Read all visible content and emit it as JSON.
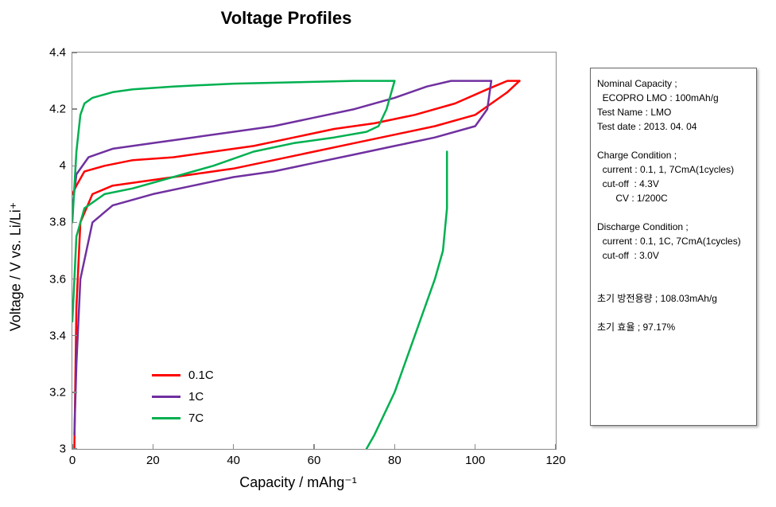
{
  "title": "Voltage Profiles",
  "axes": {
    "xlabel": "Capacity / mAhg⁻¹",
    "ylabel": "Voltage / V vs. Li/Li⁺",
    "xlim": [
      0,
      120
    ],
    "ylim": [
      3.0,
      4.4
    ],
    "xticks": [
      0,
      20,
      40,
      60,
      80,
      100,
      120
    ],
    "yticks": [
      3.0,
      3.2,
      3.4,
      3.6,
      3.8,
      4.0,
      4.2,
      4.4
    ],
    "ytick_labels": [
      "3",
      "3.2",
      "3.4",
      "3.6",
      "3.8",
      "4",
      "4.2",
      "4.4"
    ],
    "border_color": "#888888",
    "background_color": "#ffffff",
    "tick_fontsize": 15,
    "label_fontsize": 18
  },
  "legend": {
    "position": "lower-left",
    "fontsize": 15,
    "items": [
      {
        "label": "0.1C",
        "color": "#ff0000"
      },
      {
        "label": "1C",
        "color": "#7030a0"
      },
      {
        "label": "7C",
        "color": "#00b050"
      }
    ]
  },
  "series": [
    {
      "name": "0.1C",
      "color": "#ff0000",
      "line_width": 2.5,
      "charge": [
        [
          0,
          3.9
        ],
        [
          1,
          3.93
        ],
        [
          3,
          3.98
        ],
        [
          8,
          4.0
        ],
        [
          15,
          4.02
        ],
        [
          25,
          4.03
        ],
        [
          35,
          4.05
        ],
        [
          45,
          4.07
        ],
        [
          55,
          4.1
        ],
        [
          65,
          4.13
        ],
        [
          75,
          4.15
        ],
        [
          85,
          4.18
        ],
        [
          95,
          4.22
        ],
        [
          103,
          4.27
        ],
        [
          108,
          4.3
        ],
        [
          111,
          4.3
        ]
      ],
      "discharge": [
        [
          111,
          4.3
        ],
        [
          108,
          4.26
        ],
        [
          100,
          4.18
        ],
        [
          90,
          4.14
        ],
        [
          80,
          4.11
        ],
        [
          70,
          4.08
        ],
        [
          60,
          4.05
        ],
        [
          50,
          4.02
        ],
        [
          40,
          3.99
        ],
        [
          30,
          3.97
        ],
        [
          20,
          3.95
        ],
        [
          10,
          3.93
        ],
        [
          5,
          3.9
        ],
        [
          2,
          3.8
        ],
        [
          1,
          3.5
        ],
        [
          0.5,
          3.0
        ]
      ]
    },
    {
      "name": "1C",
      "color": "#7030a0",
      "line_width": 2.5,
      "charge": [
        [
          0,
          3.85
        ],
        [
          1,
          3.97
        ],
        [
          4,
          4.03
        ],
        [
          10,
          4.06
        ],
        [
          20,
          4.08
        ],
        [
          30,
          4.1
        ],
        [
          40,
          4.12
        ],
        [
          50,
          4.14
        ],
        [
          60,
          4.17
        ],
        [
          70,
          4.2
        ],
        [
          80,
          4.24
        ],
        [
          88,
          4.28
        ],
        [
          94,
          4.3
        ],
        [
          104,
          4.3
        ]
      ],
      "discharge": [
        [
          104,
          4.3
        ],
        [
          103,
          4.2
        ],
        [
          100,
          4.14
        ],
        [
          90,
          4.1
        ],
        [
          80,
          4.07
        ],
        [
          70,
          4.04
        ],
        [
          60,
          4.01
        ],
        [
          50,
          3.98
        ],
        [
          40,
          3.96
        ],
        [
          30,
          3.93
        ],
        [
          20,
          3.9
        ],
        [
          10,
          3.86
        ],
        [
          5,
          3.8
        ],
        [
          2,
          3.6
        ],
        [
          1,
          3.3
        ],
        [
          0.5,
          3.05
        ]
      ]
    },
    {
      "name": "7C",
      "color": "#00b050",
      "line_width": 2.5,
      "charge": [
        [
          0,
          3.8
        ],
        [
          1,
          4.05
        ],
        [
          2,
          4.18
        ],
        [
          3,
          4.22
        ],
        [
          5,
          4.24
        ],
        [
          10,
          4.26
        ],
        [
          15,
          4.27
        ],
        [
          25,
          4.28
        ],
        [
          40,
          4.29
        ],
        [
          55,
          4.295
        ],
        [
          70,
          4.3
        ],
        [
          80,
          4.3
        ]
      ],
      "discharge": [
        [
          80,
          4.3
        ],
        [
          78,
          4.2
        ],
        [
          76,
          4.14
        ],
        [
          73,
          4.12
        ],
        [
          65,
          4.1
        ],
        [
          55,
          4.08
        ],
        [
          45,
          4.05
        ],
        [
          35,
          4.0
        ],
        [
          25,
          3.96
        ],
        [
          15,
          3.92
        ],
        [
          8,
          3.9
        ],
        [
          3,
          3.85
        ],
        [
          1,
          3.75
        ],
        [
          0,
          3.45
        ]
      ],
      "discharge2": [
        [
          93,
          4.05
        ],
        [
          93,
          3.85
        ],
        [
          92,
          3.7
        ],
        [
          90,
          3.6
        ],
        [
          85,
          3.4
        ],
        [
          80,
          3.2
        ],
        [
          75,
          3.05
        ],
        [
          73,
          3.0
        ]
      ]
    }
  ],
  "sidebar": {
    "lines": [
      "Nominal Capacity ;",
      "  ECOPRO LMO : 100mAh/g",
      "Test Name : LMO",
      "Test date : 2013. 04. 04",
      "",
      "Charge Condition ;",
      "  current : 0.1, 1, 7CmA(1cycles)",
      "  cut-off  : 4.3V",
      "       CV : 1/200C",
      "",
      "Discharge Condition ;",
      "  current : 0.1, 1C, 7CmA(1cycles)",
      "  cut-off  : 3.0V",
      "",
      "",
      "초기 방전용량 ; 108.03mAh/g",
      "",
      "초기 효율 ; 97.17%"
    ]
  },
  "style": {
    "title_fontsize": 22,
    "title_weight": "bold",
    "sidebar_fontsize": 12,
    "sidebar_border": "#666666",
    "sidebar_shadow": "2px 2px 3px rgba(0,0,0,0.3)"
  }
}
